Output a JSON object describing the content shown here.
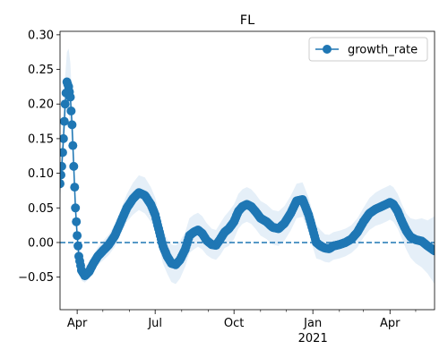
{
  "chart_data": {
    "type": "line",
    "title": "FL",
    "xlabel": "",
    "ylabel": "",
    "x_range": [
      "2020-03-12",
      "2021-05-23"
    ],
    "ylim": [
      -0.097,
      0.305
    ],
    "grid": false,
    "legend_position": "top-right",
    "x_ticks": [
      {
        "date": "2020-04-01",
        "label": "Apr",
        "sublabel": ""
      },
      {
        "date": "2020-07-01",
        "label": "Jul",
        "sublabel": ""
      },
      {
        "date": "2020-10-01",
        "label": "Oct",
        "sublabel": ""
      },
      {
        "date": "2021-01-01",
        "label": "Jan",
        "sublabel": "2021"
      },
      {
        "date": "2021-04-01",
        "label": "Apr",
        "sublabel": ""
      }
    ],
    "y_ticks": [
      -0.05,
      0.0,
      0.05,
      0.1,
      0.15,
      0.2,
      0.25,
      0.3
    ],
    "y_tick_labels": [
      "−0.05",
      "0.00",
      "0.05",
      "0.10",
      "0.15",
      "0.20",
      "0.25",
      "0.30"
    ],
    "reference_line": {
      "y": 0.0,
      "style": "dashed",
      "color": "#1f77b4"
    },
    "series": [
      {
        "name": "growth_rate",
        "color": "#1f77b4",
        "band_color": "#dce9f5",
        "marker": "circle",
        "x": [
          "2020-03-12",
          "2020-03-14",
          "2020-03-16",
          "2020-03-18",
          "2020-03-20",
          "2020-03-22",
          "2020-03-24",
          "2020-03-26",
          "2020-03-28",
          "2020-03-30",
          "2020-04-01",
          "2020-04-03",
          "2020-04-06",
          "2020-04-10",
          "2020-04-15",
          "2020-04-20",
          "2020-04-25",
          "2020-05-01",
          "2020-05-08",
          "2020-05-15",
          "2020-05-22",
          "2020-05-29",
          "2020-06-05",
          "2020-06-12",
          "2020-06-19",
          "2020-06-26",
          "2020-07-01",
          "2020-07-05",
          "2020-07-10",
          "2020-07-15",
          "2020-07-20",
          "2020-07-25",
          "2020-07-30",
          "2020-08-05",
          "2020-08-10",
          "2020-08-15",
          "2020-08-20",
          "2020-08-25",
          "2020-08-30",
          "2020-09-05",
          "2020-09-10",
          "2020-09-15",
          "2020-09-20",
          "2020-09-25",
          "2020-10-01",
          "2020-10-06",
          "2020-10-11",
          "2020-10-16",
          "2020-10-21",
          "2020-10-26",
          "2020-11-01",
          "2020-11-08",
          "2020-11-15",
          "2020-11-22",
          "2020-11-29",
          "2020-12-06",
          "2020-12-13",
          "2020-12-20",
          "2020-12-27",
          "2021-01-01",
          "2021-01-05",
          "2021-01-10",
          "2021-01-15",
          "2021-01-20",
          "2021-01-25",
          "2021-02-01",
          "2021-02-08",
          "2021-02-15",
          "2021-02-22",
          "2021-03-01",
          "2021-03-08",
          "2021-03-15",
          "2021-03-22",
          "2021-03-29",
          "2021-04-01",
          "2021-04-05",
          "2021-04-10",
          "2021-04-15",
          "2021-04-20",
          "2021-04-25",
          "2021-05-01",
          "2021-05-08",
          "2021-05-15",
          "2021-05-23"
        ],
        "values": [
          0.085,
          0.11,
          0.15,
          0.2,
          0.232,
          0.225,
          0.21,
          0.17,
          0.11,
          0.05,
          0.01,
          -0.02,
          -0.04,
          -0.048,
          -0.042,
          -0.03,
          -0.02,
          -0.012,
          -0.003,
          0.01,
          0.03,
          0.05,
          0.063,
          0.072,
          0.068,
          0.055,
          0.04,
          0.02,
          -0.005,
          -0.02,
          -0.03,
          -0.032,
          -0.025,
          -0.01,
          0.01,
          0.015,
          0.018,
          0.013,
          0.003,
          -0.003,
          -0.004,
          0.005,
          0.015,
          0.02,
          0.03,
          0.045,
          0.052,
          0.055,
          0.052,
          0.045,
          0.035,
          0.03,
          0.022,
          0.02,
          0.028,
          0.042,
          0.06,
          0.062,
          0.04,
          0.018,
          0.0,
          -0.005,
          -0.008,
          -0.009,
          -0.005,
          -0.003,
          0.0,
          0.005,
          0.015,
          0.03,
          0.042,
          0.048,
          0.052,
          0.056,
          0.058,
          0.055,
          0.045,
          0.03,
          0.017,
          0.008,
          0.004,
          0.002,
          -0.005,
          -0.012
        ],
        "band_lower": [
          0.065,
          0.085,
          0.12,
          0.16,
          0.19,
          0.185,
          0.17,
          0.135,
          0.08,
          0.025,
          -0.01,
          -0.04,
          -0.055,
          -0.058,
          -0.052,
          -0.042,
          -0.033,
          -0.026,
          -0.018,
          -0.006,
          0.012,
          0.03,
          0.04,
          0.047,
          0.042,
          0.03,
          0.015,
          -0.005,
          -0.03,
          -0.045,
          -0.057,
          -0.06,
          -0.052,
          -0.035,
          -0.015,
          -0.01,
          -0.006,
          -0.01,
          -0.018,
          -0.023,
          -0.025,
          -0.018,
          -0.008,
          -0.005,
          0.005,
          0.02,
          0.027,
          0.03,
          0.027,
          0.02,
          0.01,
          0.005,
          -0.003,
          -0.005,
          0.003,
          0.017,
          0.035,
          0.037,
          0.015,
          -0.007,
          -0.023,
          -0.025,
          -0.028,
          -0.029,
          -0.025,
          -0.023,
          -0.02,
          -0.015,
          -0.007,
          0.007,
          0.018,
          0.024,
          0.027,
          0.031,
          0.033,
          0.03,
          0.02,
          0.005,
          -0.01,
          -0.022,
          -0.03,
          -0.036,
          -0.045,
          -0.06
        ],
        "band_upper": [
          0.105,
          0.135,
          0.18,
          0.24,
          0.275,
          0.28,
          0.26,
          0.21,
          0.14,
          0.075,
          0.035,
          0.003,
          -0.022,
          -0.035,
          -0.03,
          -0.018,
          -0.007,
          0.002,
          0.012,
          0.026,
          0.048,
          0.07,
          0.086,
          0.097,
          0.094,
          0.08,
          0.065,
          0.045,
          0.02,
          0.005,
          -0.003,
          -0.004,
          0.002,
          0.015,
          0.035,
          0.04,
          0.043,
          0.038,
          0.028,
          0.02,
          0.018,
          0.028,
          0.038,
          0.045,
          0.055,
          0.07,
          0.077,
          0.08,
          0.077,
          0.07,
          0.06,
          0.055,
          0.047,
          0.045,
          0.053,
          0.067,
          0.085,
          0.087,
          0.065,
          0.043,
          0.025,
          0.018,
          0.012,
          0.011,
          0.015,
          0.017,
          0.02,
          0.025,
          0.035,
          0.05,
          0.064,
          0.072,
          0.077,
          0.081,
          0.083,
          0.08,
          0.07,
          0.055,
          0.042,
          0.035,
          0.033,
          0.035,
          0.032,
          0.038
        ]
      }
    ]
  }
}
